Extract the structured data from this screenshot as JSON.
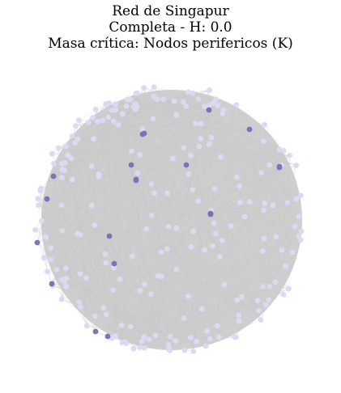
{
  "figure": {
    "title": "Red de Singapur",
    "subtitle": "Completa - H: 0.0",
    "caption": "Masa crítica: Nodos perifericos (K)"
  },
  "colors": {
    "background": "#ffffff",
    "edge": "#c9c9c9",
    "node_regular": "#dcdaf3",
    "node_peripheral": "#7b72b9"
  },
  "network": {
    "regular_node_count": 230,
    "peripheral_node_count": 20
  }
}
